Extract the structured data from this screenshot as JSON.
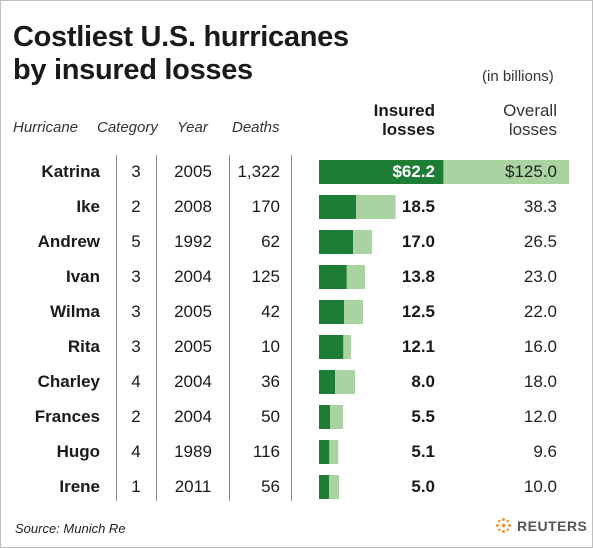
{
  "title": "Costliest U.S. hurricanes\nby insured losses",
  "units_note": "(in billions)",
  "columns": {
    "hurricane": "Hurricane",
    "category": "Category",
    "year": "Year",
    "deaths": "Deaths",
    "insured": "Insured\nlosses",
    "overall": "Overall\nlosses"
  },
  "chart_data": {
    "type": "bar",
    "categories": [
      "Katrina",
      "Ike",
      "Andrew",
      "Ivan",
      "Wilma",
      "Rita",
      "Charley",
      "Frances",
      "Hugo",
      "Irene"
    ],
    "series": [
      {
        "name": "Insured losses",
        "values": [
          62.2,
          18.5,
          17.0,
          13.8,
          12.5,
          12.1,
          8.0,
          5.5,
          5.1,
          5.0
        ]
      },
      {
        "name": "Overall losses",
        "values": [
          125.0,
          38.3,
          26.5,
          23.0,
          22.0,
          16.0,
          18.0,
          12.0,
          9.6,
          10.0
        ]
      }
    ],
    "ylim": [
      0,
      125
    ],
    "orientation": "horizontal",
    "colors": {
      "insured": "#1e7d35",
      "overall": "#a9d3a0"
    }
  },
  "rows": [
    {
      "name": "Katrina",
      "category": "3",
      "year": "2005",
      "deaths": "1,322",
      "insured": "$62.2",
      "overall": "$125.0"
    },
    {
      "name": "Ike",
      "category": "2",
      "year": "2008",
      "deaths": "170",
      "insured": "18.5",
      "overall": "38.3"
    },
    {
      "name": "Andrew",
      "category": "5",
      "year": "1992",
      "deaths": "62",
      "insured": "17.0",
      "overall": "26.5"
    },
    {
      "name": "Ivan",
      "category": "3",
      "year": "2004",
      "deaths": "125",
      "insured": "13.8",
      "overall": "23.0"
    },
    {
      "name": "Wilma",
      "category": "3",
      "year": "2005",
      "deaths": "42",
      "insured": "12.5",
      "overall": "22.0"
    },
    {
      "name": "Rita",
      "category": "3",
      "year": "2005",
      "deaths": "10",
      "insured": "12.1",
      "overall": "16.0"
    },
    {
      "name": "Charley",
      "category": "4",
      "year": "2004",
      "deaths": "36",
      "insured": "8.0",
      "overall": "18.0"
    },
    {
      "name": "Frances",
      "category": "2",
      "year": "2004",
      "deaths": "50",
      "insured": "5.5",
      "overall": "12.0"
    },
    {
      "name": "Hugo",
      "category": "4",
      "year": "1989",
      "deaths": "116",
      "insured": "5.1",
      "overall": "9.6"
    },
    {
      "name": "Irene",
      "category": "1",
      "year": "2011",
      "deaths": "56",
      "insured": "5.0",
      "overall": "10.0"
    }
  ],
  "source": "Source: Munich Re",
  "brand": {
    "name": "REUTERS",
    "icon": "reuters-logo-icon",
    "color": "#f28c28"
  }
}
